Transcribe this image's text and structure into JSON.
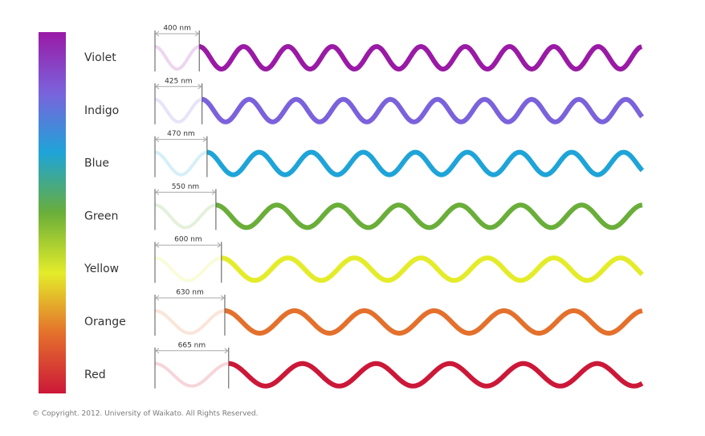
{
  "rows": [
    {
      "name": "Violet",
      "wavelength": 400,
      "wavelength_label": "400 nm",
      "color": "#9a1aa6"
    },
    {
      "name": "Indigo",
      "wavelength": 425,
      "wavelength_label": "425 nm",
      "color": "#7b62dc"
    },
    {
      "name": "Blue",
      "wavelength": 470,
      "wavelength_label": "470 nm",
      "color": "#1ea4d8"
    },
    {
      "name": "Green",
      "wavelength": 550,
      "wavelength_label": "550 nm",
      "color": "#6aae3a"
    },
    {
      "name": "Yellow",
      "wavelength": 600,
      "wavelength_label": "600 nm",
      "color": "#e4ec2a"
    },
    {
      "name": "Orange",
      "wavelength": 630,
      "wavelength_label": "630 nm",
      "color": "#e4702c"
    },
    {
      "name": "Red",
      "wavelength": 665,
      "wavelength_label": "665 nm",
      "color": "#cc1838"
    }
  ],
  "copyright": "© Copyright. 2012. University of Waikato. All Rights Reserved."
}
